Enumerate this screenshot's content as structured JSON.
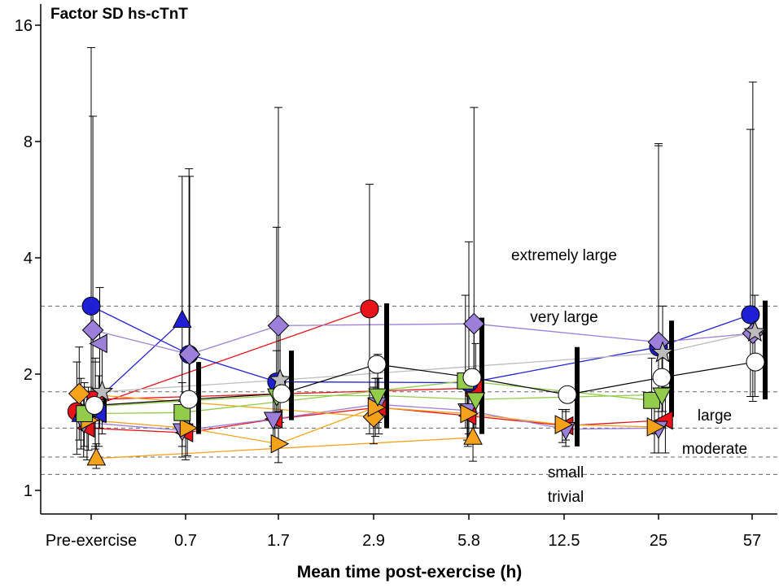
{
  "chart_data": {
    "type": "scatter",
    "title": "Factor SD hs-cTnT",
    "xlabel": "Mean time post-exercise (h)",
    "ylabel": "",
    "y_scale": "log",
    "ylim": [
      0.93,
      17
    ],
    "y_ticks": [
      1,
      2,
      4,
      8,
      16
    ],
    "y_tick_labels": [
      "1",
      "2",
      "4",
      "8",
      "16"
    ],
    "categories": [
      "Pre-exercise",
      "0.7",
      "1.7",
      "2.9",
      "5.8",
      "12.5",
      "25",
      "57"
    ],
    "thresholds": [
      {
        "value": 1.1,
        "label": "trivial"
      },
      {
        "value": 1.22,
        "label": "small"
      },
      {
        "value": 1.45,
        "label": "moderate"
      },
      {
        "value": 1.8,
        "label": "large"
      },
      {
        "value": 3.0,
        "label": "very large"
      },
      {
        "label": "extremely large"
      }
    ],
    "colors": {
      "red": "#e8141a",
      "blue": "#1f1fd6",
      "purple": "#9b7fd8",
      "orange": "#f5a21b",
      "green": "#92cc4a",
      "gray": "#bcbcbc",
      "white": "#ffffff",
      "black": "#000000"
    },
    "series": [
      {
        "name": "red-circle",
        "marker": "circle",
        "color": "#e8141a",
        "points": [
          {
            "x": 0,
            "y": 1.6,
            "o": -0.42,
            "lo": 1.24,
            "hi": 2.15
          },
          {
            "x": 3,
            "y": 2.95,
            "o": -0.12,
            "lo": 1.4,
            "hi": 6.2
          }
        ]
      },
      {
        "name": "red-square",
        "marker": "square",
        "color": "#e8141a",
        "points": [
          {
            "x": 0,
            "y": 1.72,
            "o": 0.12,
            "lo": 1.28,
            "hi": 2.2
          },
          {
            "x": 4,
            "y": 1.84,
            "o": 0.15,
            "lo": 1.35,
            "hi": 2.7
          }
        ]
      },
      {
        "name": "red-triangle-left",
        "marker": "tri-left",
        "color": "#e8141a",
        "points": [
          {
            "x": 0,
            "y": 1.45,
            "o": -0.12,
            "lo": 1.2,
            "hi": 1.75
          },
          {
            "x": 1,
            "y": 1.41,
            "o": 0,
            "lo": 1.2,
            "hi": 1.7
          },
          {
            "x": 2,
            "y": 1.53,
            "o": -0.1,
            "lo": 1.3,
            "hi": 1.85
          },
          {
            "x": 3,
            "y": 1.64,
            "o": 0.15,
            "lo": 1.4,
            "hi": 1.95
          },
          {
            "x": 4,
            "y": 1.56,
            "o": 0,
            "lo": 1.33,
            "hi": 1.85
          },
          {
            "x": 5,
            "y": 1.47,
            "o": 0.05,
            "lo": 1.35,
            "hi": 1.62
          },
          {
            "x": 6,
            "y": 1.52,
            "o": 0.2,
            "lo": 1.25,
            "hi": 1.85
          }
        ]
      },
      {
        "name": "blue-circle",
        "marker": "circle",
        "color": "#1f1fd6",
        "points": [
          {
            "x": 0,
            "y": 3.0,
            "o": 0,
            "lo": 1.55,
            "hi": 14.0
          },
          {
            "x": 1,
            "y": 2.25,
            "o": 0.1,
            "lo": 1.45,
            "hi": 6.8
          },
          {
            "x": 2,
            "y": 1.91,
            "o": -0.05,
            "lo": 1.45,
            "hi": 4.8
          },
          {
            "x": 4,
            "y": 1.9,
            "o": 0,
            "lo": 1.4,
            "hi": 4.4
          },
          {
            "x": 6,
            "y": 2.35,
            "o": 0,
            "lo": 1.6,
            "hi": 7.8
          },
          {
            "x": 7,
            "y": 2.85,
            "o": -0.05,
            "lo": 1.75,
            "hi": 8.6
          }
        ]
      },
      {
        "name": "blue-triangle-up",
        "marker": "tri-up",
        "color": "#1f1fd6",
        "points": [
          {
            "x": 0,
            "y": 1.57,
            "o": -0.3,
            "lo": 1.28,
            "hi": 1.95
          },
          {
            "x": 1,
            "y": 2.75,
            "o": -0.1,
            "lo": 1.45,
            "hi": 6.5
          }
        ]
      },
      {
        "name": "blue-triangle-left",
        "marker": "tri-left",
        "color": "#1f1fd6",
        "points": [
          {
            "x": 0,
            "y": 1.58,
            "o": 0.22,
            "lo": 1.3,
            "hi": 1.98
          }
        ]
      },
      {
        "name": "purple-diamond",
        "marker": "diamond",
        "color": "#9b7fd8",
        "points": [
          {
            "x": 0,
            "y": 2.6,
            "o": 0.05,
            "lo": 1.45,
            "hi": 9.3
          },
          {
            "x": 1,
            "y": 2.25,
            "o": 0.12,
            "lo": 1.45,
            "hi": 6.5
          },
          {
            "x": 2,
            "y": 2.67,
            "o": 0,
            "lo": 1.6,
            "hi": 9.8
          },
          {
            "x": 4,
            "y": 2.7,
            "o": 0.15,
            "lo": 1.45,
            "hi": 9.8
          },
          {
            "x": 6,
            "y": 2.42,
            "o": 0,
            "lo": 1.5,
            "hi": 7.9
          },
          {
            "x": 7,
            "y": 2.55,
            "o": 0.02,
            "lo": 1.7,
            "hi": 11.4
          }
        ]
      },
      {
        "name": "purple-triangle-left",
        "marker": "tri-left",
        "color": "#9b7fd8",
        "points": [
          {
            "x": 0,
            "y": 2.4,
            "o": 0.25,
            "lo": 1.45,
            "hi": 3.35
          }
        ]
      },
      {
        "name": "purple-triangle-down",
        "marker": "tri-down",
        "color": "#9b7fd8",
        "points": [
          {
            "x": 0,
            "y": 1.5,
            "o": -0.22,
            "lo": 1.22,
            "hi": 1.85
          },
          {
            "x": 1,
            "y": 1.43,
            "o": -0.1,
            "lo": 1.22,
            "hi": 1.7
          },
          {
            "x": 2,
            "y": 1.53,
            "o": -0.15,
            "lo": 1.3,
            "hi": 1.85
          },
          {
            "x": 3,
            "y": 1.67,
            "o": 0.1,
            "lo": 1.45,
            "hi": 1.95
          },
          {
            "x": 4,
            "y": 1.61,
            "o": -0.05,
            "lo": 1.35,
            "hi": 1.95
          },
          {
            "x": 5,
            "y": 1.44,
            "o": 0.05,
            "lo": 1.3,
            "hi": 1.6
          },
          {
            "x": 6,
            "y": 1.45,
            "o": 0,
            "lo": 1.25,
            "hi": 1.7
          }
        ]
      },
      {
        "name": "orange-diamond",
        "marker": "diamond",
        "color": "#f5a21b",
        "points": [
          {
            "x": 0,
            "y": 1.78,
            "o": -0.35,
            "lo": 1.35,
            "hi": 2.35
          },
          {
            "x": 3,
            "y": 1.55,
            "o": 0,
            "lo": 1.32,
            "hi": 1.85
          }
        ]
      },
      {
        "name": "orange-triangle-up",
        "marker": "tri-up",
        "color": "#f5a21b",
        "points": [
          {
            "x": 0,
            "y": 1.21,
            "o": 0.15,
            "lo": 1.14,
            "hi": 1.32
          },
          {
            "x": 4,
            "y": 1.37,
            "o": 0.12,
            "lo": 1.19,
            "hi": 1.6
          }
        ]
      },
      {
        "name": "orange-triangle-right",
        "marker": "tri-right",
        "color": "#f5a21b",
        "points": [
          {
            "x": 0,
            "y": 1.52,
            "o": -0.08,
            "lo": 1.27,
            "hi": 1.85
          },
          {
            "x": 1,
            "y": 1.45,
            "o": 0.05,
            "lo": 1.23,
            "hi": 1.75
          },
          {
            "x": 2,
            "y": 1.32,
            "o": 0,
            "lo": 1.18,
            "hi": 1.5
          },
          {
            "x": 3,
            "y": 1.64,
            "o": 0.05,
            "lo": 1.38,
            "hi": 1.95
          },
          {
            "x": 4,
            "y": 1.58,
            "o": -0.03,
            "lo": 1.3,
            "hi": 1.95
          },
          {
            "x": 5,
            "y": 1.48,
            "o": -0.05,
            "lo": 1.33,
            "hi": 1.62
          },
          {
            "x": 6,
            "y": 1.46,
            "o": -0.12,
            "lo": 1.25,
            "hi": 1.7
          }
        ]
      },
      {
        "name": "green-square",
        "marker": "square",
        "color": "#92cc4a",
        "points": [
          {
            "x": 0,
            "y": 1.58,
            "o": -0.2,
            "lo": 1.3,
            "hi": 1.9
          },
          {
            "x": 1,
            "y": 1.59,
            "o": -0.1,
            "lo": 1.3,
            "hi": 1.9
          },
          {
            "x": 4,
            "y": 1.92,
            "o": -0.1,
            "lo": 1.45,
            "hi": 3.2
          },
          {
            "x": 6,
            "y": 1.71,
            "o": -0.2,
            "lo": 1.4,
            "hi": 2.2
          }
        ]
      },
      {
        "name": "green-triangle-down",
        "marker": "tri-down",
        "color": "#92cc4a",
        "points": [
          {
            "x": 0,
            "y": 1.65,
            "o": 0.12,
            "lo": 1.3,
            "hi": 2.15
          },
          {
            "x": 2,
            "y": 1.76,
            "o": -0.05,
            "lo": 1.45,
            "hi": 2.3
          },
          {
            "x": 3,
            "y": 1.76,
            "o": 0.12,
            "lo": 1.5,
            "hi": 2.25
          },
          {
            "x": 4,
            "y": 1.72,
            "o": 0.2,
            "lo": 1.45,
            "hi": 2.4
          },
          {
            "x": 6,
            "y": 1.77,
            "o": 0.1,
            "lo": 1.5,
            "hi": 2.2
          }
        ]
      },
      {
        "name": "gray-star",
        "marker": "star",
        "color": "#bcbcbc",
        "points": [
          {
            "x": 0,
            "y": 1.8,
            "o": 0.32,
            "lo": 1.4,
            "hi": 2.4
          },
          {
            "x": 2,
            "y": 1.93,
            "o": 0.05,
            "lo": 1.5,
            "hi": 2.6
          },
          {
            "x": 6,
            "y": 2.27,
            "o": 0.12,
            "lo": 1.6,
            "hi": 3.0
          },
          {
            "x": 7,
            "y": 2.57,
            "o": 0.08,
            "lo": 1.75,
            "hi": 3.2
          }
        ]
      }
    ],
    "overall": {
      "name": "overall-mean",
      "marker": "open-circle",
      "color": "#ffffff",
      "points": [
        {
          "x": 0,
          "y": 1.66,
          "lo": 1.5,
          "hi": 1.8
        },
        {
          "x": 1,
          "y": 1.72,
          "lo": 1.4,
          "hi": 2.15
        },
        {
          "x": 2,
          "y": 1.78,
          "lo": 1.52,
          "hi": 2.3
        },
        {
          "x": 3,
          "y": 2.12,
          "lo": 1.45,
          "hi": 3.05
        },
        {
          "x": 4,
          "y": 1.96,
          "lo": 1.4,
          "hi": 2.8
        },
        {
          "x": 5,
          "y": 1.77,
          "lo": 1.3,
          "hi": 2.35
        },
        {
          "x": 6,
          "y": 1.96,
          "lo": 1.55,
          "hi": 2.75
        },
        {
          "x": 7,
          "y": 2.15,
          "lo": 1.72,
          "hi": 3.1
        }
      ]
    }
  }
}
